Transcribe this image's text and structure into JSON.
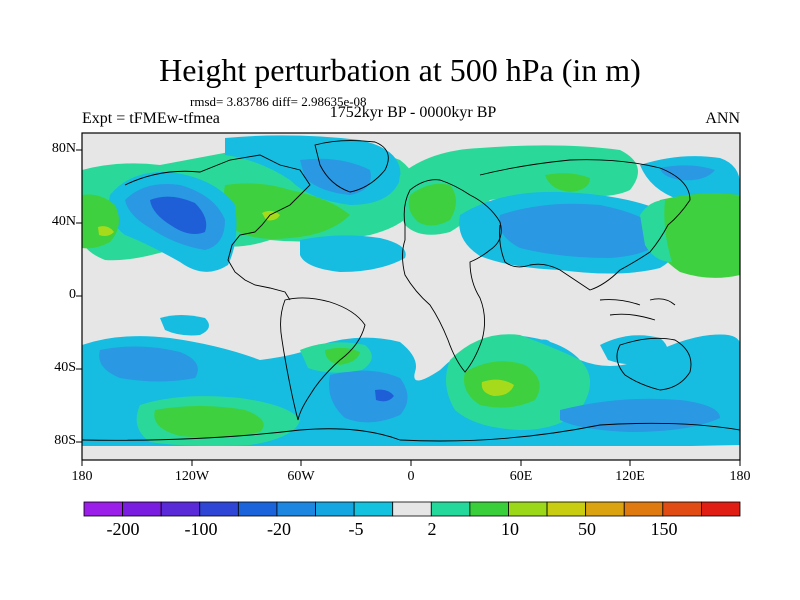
{
  "title": "Height perturbation at 500 hPa (in m)",
  "stats": "rmsd= 3.83786  diff= 2.98635e-08",
  "experiment": "Expt = tFMEw-tfmea",
  "period": "1752kyr BP - 0000kyr BP",
  "season": "ANN",
  "lat_ticks": [
    "80N",
    "40N",
    "0",
    "40S",
    "80S"
  ],
  "lon_ticks": [
    "180",
    "120W",
    "60W",
    "0",
    "60E",
    "120E",
    "180"
  ],
  "colorbar": {
    "labels": [
      "-200",
      "-100",
      "-20",
      "-5",
      "2",
      "10",
      "50",
      "150"
    ],
    "colors": [
      "#9b1fe8",
      "#7a1de0",
      "#5a2ad8",
      "#2e45d6",
      "#1a63db",
      "#1d86e0",
      "#13a6e1",
      "#12c2de",
      "#e6e6e6",
      "#24d79b",
      "#38cf3a",
      "#9cd81a",
      "#c8cd12",
      "#dca311",
      "#de7a10",
      "#e04c14",
      "#e01e14"
    ]
  },
  "colors": {
    "neutral": "#e6e6e6",
    "light_blue": "#16bde0",
    "mid_blue": "#2a98e2",
    "dark_blue": "#1e5fd8",
    "light_green": "#2ad99a",
    "green": "#3ed03e",
    "yellow_green": "#a6db1c"
  }
}
